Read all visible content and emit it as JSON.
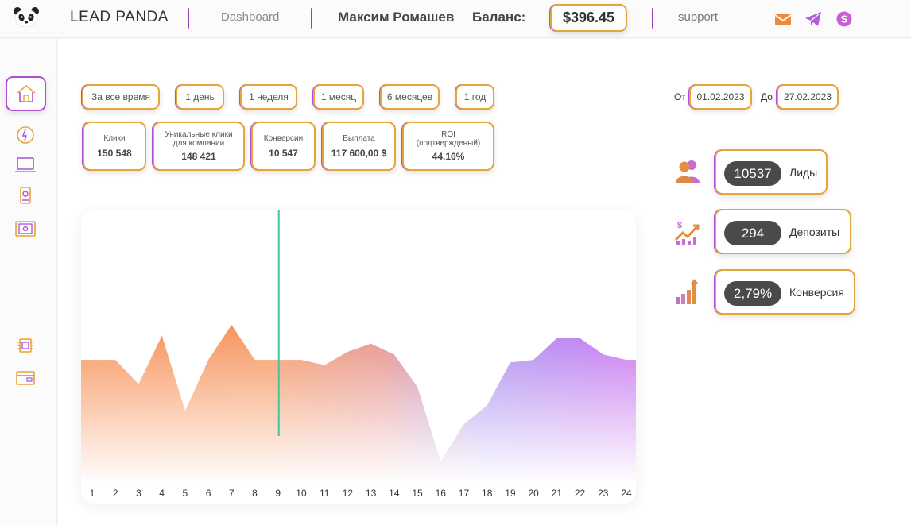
{
  "header": {
    "brand": "LEAD PANDA",
    "nav_dashboard": "Dashboard",
    "user_name": "Максим Ромашев",
    "balance_label": "Баланс:",
    "balance_value": "$396.45",
    "support": "support"
  },
  "filters": [
    "За все время",
    "1 день",
    "1 неделя",
    "1 месяц",
    "6 месяцев",
    "1 год"
  ],
  "stats": [
    {
      "label": "Клики",
      "value": "150 548"
    },
    {
      "label": "Уникальные клики для компании",
      "value": "148 421"
    },
    {
      "label": "Конверсии",
      "value": "10 547"
    },
    {
      "label": "Выплата",
      "value": "117 600,00 $"
    },
    {
      "label": "ROI (подтвержденый)",
      "value": "44,16%"
    }
  ],
  "date_range": {
    "from_label": "От",
    "from_value": "01.02.2023",
    "to_label": "До",
    "to_value": "27.02.2023"
  },
  "kpis": [
    {
      "value": "10537",
      "label": "Лиды"
    },
    {
      "value": "294",
      "label": "Депозиты"
    },
    {
      "value": "2,79%",
      "label": "Конверсия"
    }
  ],
  "chart_data": {
    "type": "area",
    "x": [
      "1",
      "2",
      "3",
      "4",
      "5",
      "6",
      "7",
      "8",
      "9",
      "10",
      "11",
      "12",
      "13",
      "14",
      "15",
      "16",
      "17",
      "18",
      "19",
      "20",
      "21",
      "22",
      "23",
      "24"
    ],
    "values": [
      46,
      46,
      37,
      55,
      27,
      46,
      59,
      46,
      46,
      46,
      44,
      49,
      52,
      48,
      36,
      8,
      22,
      29,
      45,
      46,
      54,
      54,
      48,
      46
    ],
    "ylim": [
      0,
      100
    ],
    "highlight_x": "9",
    "title": "",
    "xlabel": "",
    "ylabel": ""
  },
  "colors": {
    "accent_orange": "#e6a43c",
    "accent_purple": "#b04fd4",
    "area_left": "#f5925a",
    "area_right": "#c27bf0"
  }
}
